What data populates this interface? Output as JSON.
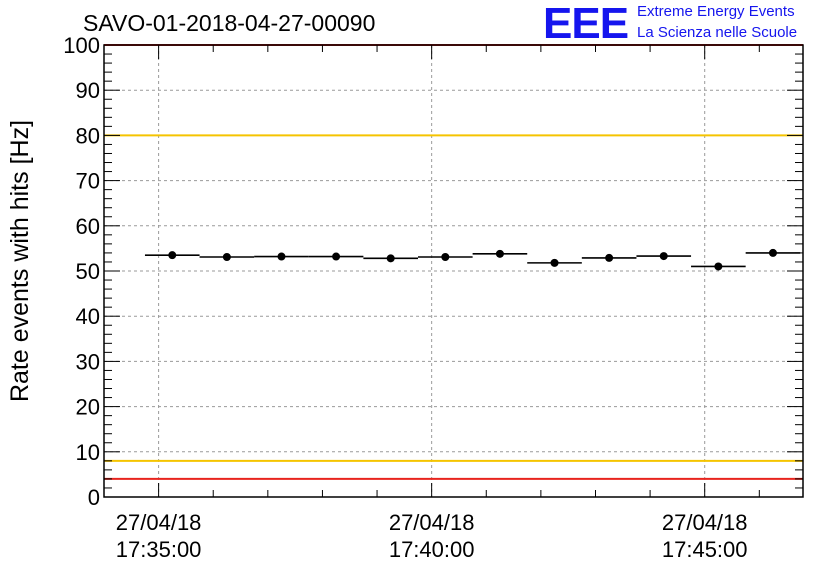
{
  "chart_data": {
    "type": "scatter",
    "title": "SAVO-01-2018-04-27-00090",
    "ylabel": "Rate events with hits [Hz]",
    "xlabel": "",
    "ylim": [
      0,
      100
    ],
    "yticks": [
      0,
      10,
      20,
      30,
      40,
      50,
      60,
      70,
      80,
      90,
      100
    ],
    "xlim_minutes": [
      -1.0,
      11.8
    ],
    "xticks": [
      {
        "minute": 0,
        "date": "27/04/18",
        "time": "17:35:00"
      },
      {
        "minute": 5,
        "date": "27/04/18",
        "time": "17:40:00"
      },
      {
        "minute": 10,
        "date": "27/04/18",
        "time": "17:45:00"
      }
    ],
    "grid": true,
    "bin_width_minutes": 1.0,
    "series": [
      {
        "name": "rate",
        "x_minutes": [
          0.25,
          1.25,
          2.25,
          3.25,
          4.25,
          5.25,
          6.25,
          7.25,
          8.25,
          9.25,
          10.25,
          11.25
        ],
        "values": [
          53.5,
          53.1,
          53.2,
          53.2,
          52.8,
          53.1,
          53.8,
          51.8,
          52.9,
          53.3,
          51.0,
          54.0
        ]
      }
    ],
    "reference_lines": [
      {
        "value": 80,
        "color": "#f5c400"
      },
      {
        "value": 8,
        "color": "#f5c400"
      },
      {
        "value": 100,
        "color": "#e8241e"
      },
      {
        "value": 4,
        "color": "#e8241e"
      }
    ]
  },
  "logo": {
    "mark": "EEE",
    "line1": "Extreme Energy Events",
    "line2": "La Scienza nelle Scuole",
    "color": "#1515ee"
  }
}
